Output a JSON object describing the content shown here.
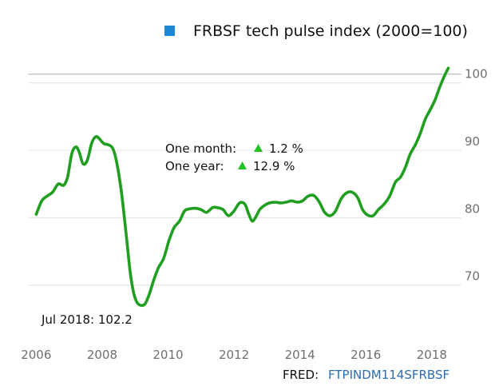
{
  "colors": {
    "line": "#1f9e1f",
    "legend_marker": "#1e88d6",
    "grid": "#e3e3e3",
    "highlight_line": "#c8c8c8",
    "up_arrow": "#22c322",
    "source_link": "#2a6db4"
  },
  "legend": {
    "label": "FRBSF tech pulse index (2000=100)"
  },
  "annotations": {
    "one_month_label": "One month:",
    "one_month_value": "1.2 %",
    "one_year_label": "One year:",
    "one_year_value": "12.9 %",
    "latest": "Jul 2018: 102.2"
  },
  "source": {
    "prefix": "FRED:",
    "series_id": "FTPINDM114SFRBSF"
  },
  "chart_data": {
    "type": "line",
    "title": "",
    "xlabel": "",
    "ylabel": "",
    "x_ticks": [
      "2006",
      "2008",
      "2010",
      "2012",
      "2014",
      "2016",
      "2018"
    ],
    "y_ticks": [
      "70",
      "80",
      "90",
      "100"
    ],
    "xlim": [
      2005.75,
      2018.9
    ],
    "ylim": [
      62.5,
      104
    ],
    "highlight_y": 101.3,
    "grid": "horizontal",
    "legend_position": "top",
    "series": [
      {
        "name": "FRBSF tech pulse index (2000=100)",
        "x": [
          2006.0,
          2006.17,
          2006.33,
          2006.5,
          2006.67,
          2006.83,
          2006.95,
          2007.08,
          2007.2,
          2007.3,
          2007.42,
          2007.55,
          2007.68,
          2007.8,
          2007.9,
          2008.05,
          2008.2,
          2008.33,
          2008.45,
          2008.58,
          2008.72,
          2008.85,
          2008.95,
          2009.05,
          2009.17,
          2009.3,
          2009.42,
          2009.55,
          2009.7,
          2009.87,
          2010.02,
          2010.18,
          2010.35,
          2010.5,
          2010.65,
          2010.82,
          2011.0,
          2011.17,
          2011.35,
          2011.5,
          2011.67,
          2011.83,
          2012.0,
          2012.17,
          2012.33,
          2012.45,
          2012.55,
          2012.65,
          2012.78,
          2012.92,
          2013.08,
          2013.25,
          2013.42,
          2013.58,
          2013.75,
          2013.92,
          2014.08,
          2014.25,
          2014.42,
          2014.58,
          2014.75,
          2014.92,
          2015.08,
          2015.25,
          2015.42,
          2015.58,
          2015.75,
          2015.9,
          2016.05,
          2016.22,
          2016.38,
          2016.55,
          2016.72,
          2016.9,
          2017.05,
          2017.2,
          2017.35,
          2017.5,
          2017.65,
          2017.8,
          2017.95,
          2018.1,
          2018.25,
          2018.38,
          2018.5
        ],
        "values": [
          80.5,
          82.5,
          83.2,
          83.8,
          85.0,
          84.8,
          86.0,
          89.5,
          90.5,
          89.8,
          88.0,
          88.5,
          91.0,
          92.0,
          91.8,
          91.0,
          90.8,
          90.2,
          88.0,
          84.0,
          78.0,
          72.0,
          69.0,
          67.5,
          67.0,
          67.2,
          68.5,
          70.5,
          72.5,
          74.0,
          76.5,
          78.5,
          79.5,
          81.0,
          81.3,
          81.4,
          81.2,
          80.8,
          81.5,
          81.5,
          81.2,
          80.3,
          81.0,
          82.2,
          82.0,
          80.5,
          79.5,
          80.0,
          81.2,
          81.8,
          82.2,
          82.3,
          82.2,
          82.3,
          82.5,
          82.3,
          82.5,
          83.2,
          83.3,
          82.4,
          80.8,
          80.3,
          81.0,
          82.8,
          83.7,
          83.8,
          83.0,
          81.2,
          80.4,
          80.3,
          81.2,
          82.0,
          83.2,
          85.3,
          86.0,
          87.5,
          89.5,
          90.8,
          92.5,
          94.6,
          96.0,
          97.5,
          99.5,
          101.0,
          102.2
        ]
      }
    ]
  }
}
